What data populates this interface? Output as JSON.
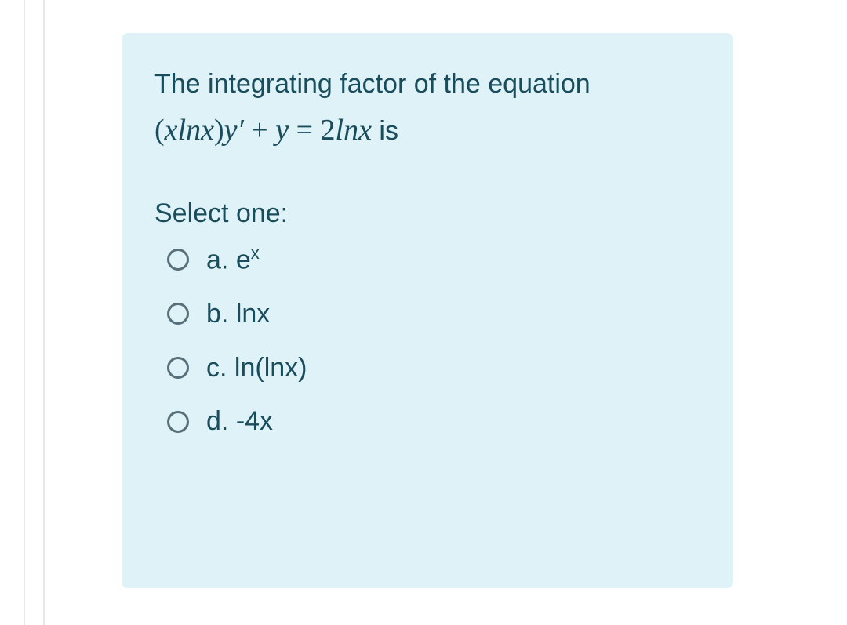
{
  "card": {
    "background_color": "#def2f8",
    "text_color": "#1a4d5c",
    "radio_border_color": "#58707a"
  },
  "question": {
    "intro": "The integrating factor of the equation",
    "equation_prefix": "(",
    "equation_body": "xlnx",
    "equation_close": ")",
    "equation_yprime": "y′",
    "equation_plus": " + ",
    "equation_y": "y",
    "equation_eq": " = ",
    "equation_rhs_coef": "2",
    "equation_rhs_fn": "lnx",
    "equation_tail": " is"
  },
  "select_label": "Select one:",
  "options": [
    {
      "letter": "a.",
      "text": "e",
      "sup": "x"
    },
    {
      "letter": "b.",
      "text": "lnx",
      "sup": ""
    },
    {
      "letter": "c.",
      "text": "ln(lnx)",
      "sup": ""
    },
    {
      "letter": "d.",
      "text": "-4x",
      "sup": ""
    }
  ]
}
